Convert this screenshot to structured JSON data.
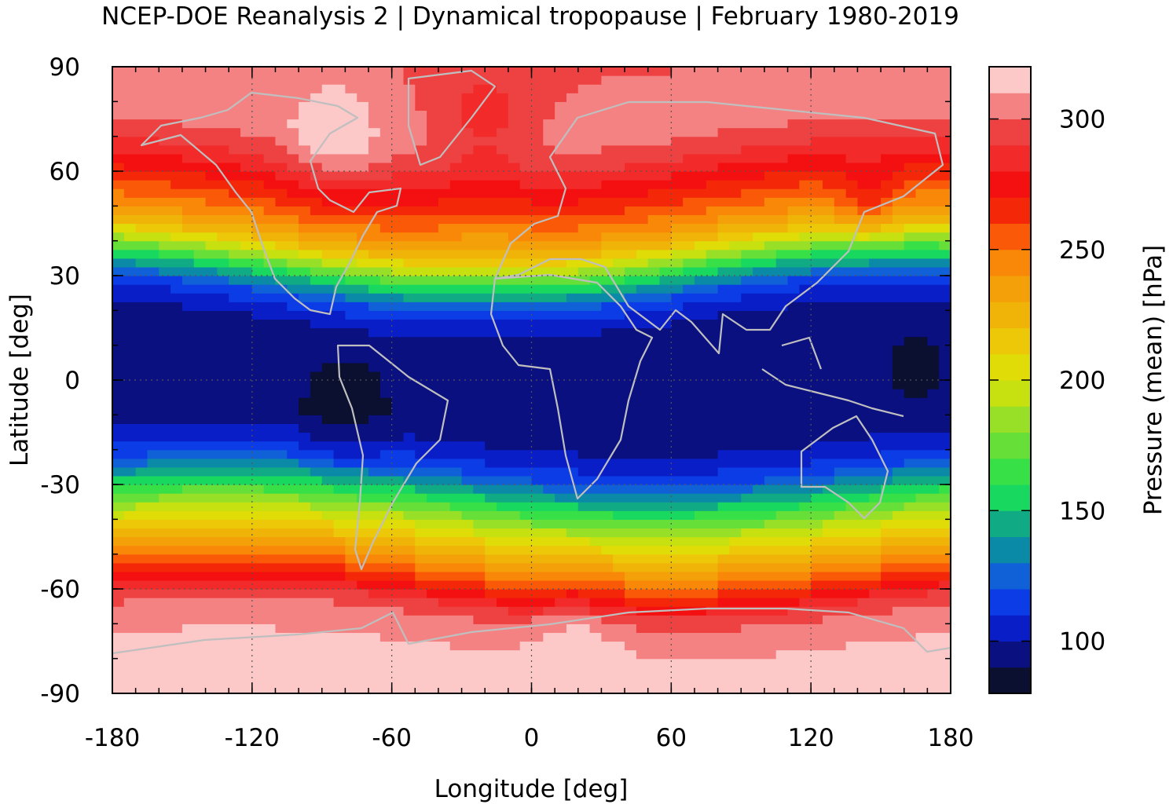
{
  "chart_data": {
    "type": "heatmap",
    "title": "NCEP-DOE Reanalysis 2 | Dynamical tropopause | February 1980-2019",
    "xlabel": "Longitude [deg]",
    "ylabel": "Latitude [deg]",
    "xlim": [
      -180,
      180
    ],
    "ylim": [
      -90,
      90
    ],
    "x_ticks": [
      "-180",
      "-120",
      "-60",
      "0",
      "60",
      "120",
      "180"
    ],
    "y_ticks": [
      "90",
      "60",
      "30",
      "0",
      "-30",
      "-60",
      "-90"
    ],
    "grid": true,
    "colorbar": {
      "label": "Pressure (mean) [hPa]",
      "range": [
        80,
        320
      ],
      "ticks": [
        "100",
        "150",
        "200",
        "250",
        "300"
      ],
      "levels": [
        {
          "from": 80,
          "to": 90,
          "color": "#0b0f30"
        },
        {
          "from": 90,
          "to": 100,
          "color": "#0a1080"
        },
        {
          "from": 100,
          "to": 110,
          "color": "#0a1ec8"
        },
        {
          "from": 110,
          "to": 120,
          "color": "#0b3ce6"
        },
        {
          "from": 120,
          "to": 130,
          "color": "#1060d8"
        },
        {
          "from": 130,
          "to": 140,
          "color": "#0b8aa8"
        },
        {
          "from": 140,
          "to": 150,
          "color": "#10aa84"
        },
        {
          "from": 150,
          "to": 160,
          "color": "#18d860"
        },
        {
          "from": 160,
          "to": 170,
          "color": "#38e048"
        },
        {
          "from": 170,
          "to": 180,
          "color": "#66e038"
        },
        {
          "from": 180,
          "to": 190,
          "color": "#98e028"
        },
        {
          "from": 190,
          "to": 200,
          "color": "#c6e010"
        },
        {
          "from": 200,
          "to": 210,
          "color": "#e0dc08"
        },
        {
          "from": 210,
          "to": 220,
          "color": "#ecc808"
        },
        {
          "from": 220,
          "to": 230,
          "color": "#f0b408"
        },
        {
          "from": 230,
          "to": 240,
          "color": "#f4a008"
        },
        {
          "from": 240,
          "to": 250,
          "color": "#fa8808"
        },
        {
          "from": 250,
          "to": 260,
          "color": "#fa5a08"
        },
        {
          "from": 260,
          "to": 270,
          "color": "#f42808"
        },
        {
          "from": 270,
          "to": 280,
          "color": "#f41010"
        },
        {
          "from": 280,
          "to": 290,
          "color": "#f22a2a"
        },
        {
          "from": 290,
          "to": 300,
          "color": "#ee4242"
        },
        {
          "from": 300,
          "to": 310,
          "color": "#f48282"
        },
        {
          "from": 310,
          "to": 320,
          "color": "#fcc8c8"
        }
      ]
    },
    "zonal_profile": {
      "note_lat": [
        -90,
        -80,
        -72,
        -65,
        -60,
        -55,
        -50,
        -45,
        -40,
        -35,
        -30,
        -25,
        -20,
        -15,
        -10,
        0,
        10,
        15,
        20,
        25,
        30,
        35,
        40,
        45,
        50,
        55,
        60,
        65,
        70,
        75,
        80,
        90
      ],
      "pressure_hPa": [
        315,
        312,
        308,
        296,
        272,
        252,
        232,
        212,
        190,
        165,
        140,
        118,
        105,
        97,
        93,
        92,
        93,
        96,
        104,
        120,
        148,
        185,
        220,
        240,
        255,
        268,
        280,
        292,
        300,
        304,
        302,
        300
      ]
    }
  }
}
